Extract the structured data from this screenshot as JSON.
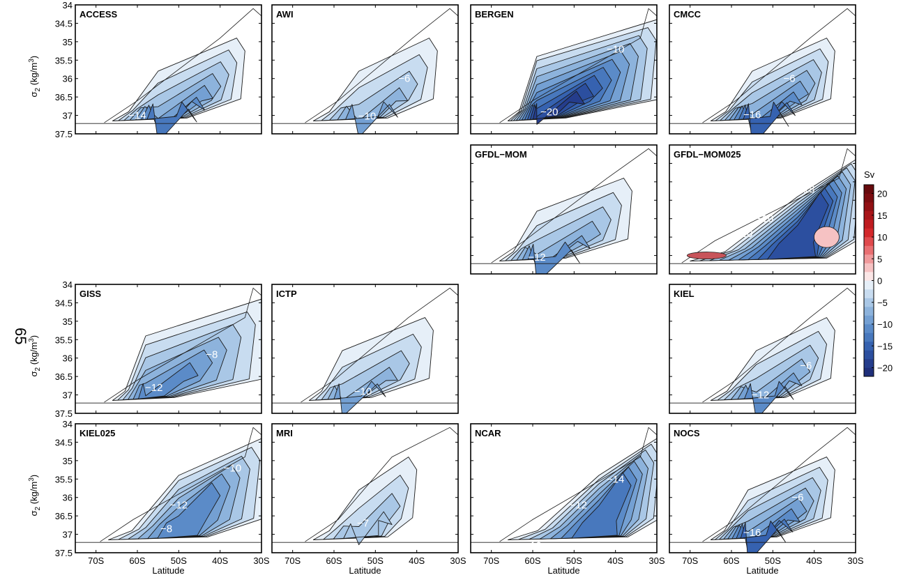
{
  "page_number": "65",
  "chart_data": {
    "type": "contour",
    "x": {
      "label": "Latitude",
      "ticks": [
        "70S",
        "60S",
        "50S",
        "40S",
        "30S"
      ],
      "tick_values": [
        -70,
        -60,
        -50,
        -40,
        -30
      ],
      "range": [
        -75,
        -30
      ]
    },
    "y": {
      "label": "σ",
      "label_sub": "2",
      "label_units_pre": " (kg/m",
      "label_units_sup": "3",
      "label_units_post": ")",
      "ticks": [
        "34",
        "34.5",
        "35",
        "35.5",
        "36",
        "36.5",
        "37",
        "37.5"
      ],
      "tick_values": [
        34,
        34.5,
        35,
        35.5,
        36,
        36.5,
        37,
        37.5
      ],
      "range": [
        34,
        37.5
      ],
      "inverted": true
    },
    "colorbar": {
      "units": "Sv",
      "ticks": [
        "20",
        "15",
        "10",
        "5",
        "0",
        "−5",
        "−10",
        "−15",
        "−20"
      ],
      "tick_values": [
        20,
        15,
        10,
        5,
        0,
        -5,
        -10,
        -15,
        -20
      ],
      "range": [
        -22,
        22
      ],
      "levels": [
        {
          "min": -22,
          "max": -20,
          "color": "#1f2f7a"
        },
        {
          "min": -20,
          "max": -18,
          "color": "#253d8c"
        },
        {
          "min": -18,
          "max": -16,
          "color": "#2c4f9f"
        },
        {
          "min": -16,
          "max": -14,
          "color": "#3662b0"
        },
        {
          "min": -14,
          "max": -12,
          "color": "#4878bd"
        },
        {
          "min": -12,
          "max": -10,
          "color": "#5b8bc8"
        },
        {
          "min": -10,
          "max": -8,
          "color": "#74a0d3"
        },
        {
          "min": -8,
          "max": -6,
          "color": "#8db3dc"
        },
        {
          "min": -6,
          "max": -4,
          "color": "#a9c7e6"
        },
        {
          "min": -4,
          "max": -2,
          "color": "#c8dcf0"
        },
        {
          "min": -2,
          "max": 0,
          "color": "#e6eff8"
        },
        {
          "min": 0,
          "max": 2,
          "color": "#fbe6e6"
        },
        {
          "min": 2,
          "max": 4,
          "color": "#f6c2c3"
        },
        {
          "min": 4,
          "max": 6,
          "color": "#f0999b"
        },
        {
          "min": 6,
          "max": 8,
          "color": "#e96f72"
        },
        {
          "min": 8,
          "max": 10,
          "color": "#e04a4d"
        },
        {
          "min": 10,
          "max": 12,
          "color": "#d3282b"
        },
        {
          "min": 12,
          "max": 14,
          "color": "#bf1c20"
        },
        {
          "min": 14,
          "max": 16,
          "color": "#a81519"
        },
        {
          "min": 16,
          "max": 18,
          "color": "#911014"
        },
        {
          "min": 18,
          "max": 20,
          "color": "#7b0c10"
        },
        {
          "min": 20,
          "max": 22,
          "color": "#670a0d"
        }
      ]
    },
    "panels": [
      {
        "name": "ACCESS",
        "row": 0,
        "col": 0,
        "min_sv": -14,
        "core": [
          -53,
          36.9
        ],
        "extent_lat": [
          -66,
          -36
        ],
        "labels": [
          {
            "text": "−14",
            "lat": -60,
            "sigma": 37.0
          }
        ]
      },
      {
        "name": "AWI",
        "row": 0,
        "col": 1,
        "min_sv": -10,
        "core": [
          -52,
          36.9
        ],
        "extent_lat": [
          -65,
          -37
        ],
        "labels": [
          {
            "text": "−10",
            "lat": -52,
            "sigma": 37.02
          },
          {
            "text": "−6",
            "lat": -43,
            "sigma": 36.0
          }
        ]
      },
      {
        "name": "BERGEN",
        "row": 0,
        "col": 2,
        "min_sv": -20,
        "core": [
          -57,
          36.8
        ],
        "extent_lat": [
          -66,
          -30
        ],
        "labels": [
          {
            "text": "−20",
            "lat": -56,
            "sigma": 36.9
          },
          {
            "text": "−10",
            "lat": -40,
            "sigma": 35.2
          }
        ]
      },
      {
        "name": "CMCC",
        "row": 0,
        "col": 3,
        "min_sv": -16,
        "core": [
          -53,
          37.0
        ],
        "extent_lat": [
          -65,
          -37
        ],
        "labels": [
          {
            "text": "−16",
            "lat": -55,
            "sigma": 36.98
          },
          {
            "text": "−6",
            "lat": -46,
            "sigma": 36.0
          }
        ]
      },
      {
        "name": "GFDL−MOM",
        "row": 1,
        "col": 2,
        "min_sv": -12,
        "core": [
          -57,
          37.0
        ],
        "extent_lat": [
          -68,
          -38
        ],
        "labels": [
          {
            "text": "−12",
            "lat": -59,
            "sigma": 37.05
          }
        ]
      },
      {
        "name": "GFDL−MOM025",
        "row": 1,
        "col": 3,
        "min_sv": -18,
        "core": [
          -42,
          35.5
        ],
        "extent_lat": [
          -70,
          -30
        ],
        "labels": [
          {
            "text": "−18",
            "lat": -42,
            "sigma": 35.2
          },
          {
            "text": "−10",
            "lat": -52,
            "sigma": 36.0
          },
          {
            "text": "−10",
            "lat": -57,
            "sigma": 36.4
          }
        ]
      },
      {
        "name": "GISS",
        "row": 2,
        "col": 0,
        "min_sv": -12,
        "core": [
          -56,
          36.7
        ],
        "extent_lat": [
          -66,
          -30
        ],
        "labels": [
          {
            "text": "−12",
            "lat": -56,
            "sigma": 36.8
          },
          {
            "text": "−8",
            "lat": -42,
            "sigma": 35.9
          }
        ]
      },
      {
        "name": "ICTP",
        "row": 2,
        "col": 1,
        "min_sv": -10,
        "core": [
          -56,
          36.9
        ],
        "extent_lat": [
          -66,
          -38
        ],
        "labels": [
          {
            "text": "−10",
            "lat": -53,
            "sigma": 36.9
          }
        ]
      },
      {
        "name": "KIEL",
        "row": 2,
        "col": 3,
        "min_sv": -12,
        "core": [
          -52,
          36.9
        ],
        "extent_lat": [
          -65,
          -37
        ],
        "labels": [
          {
            "text": "−12",
            "lat": -53,
            "sigma": 37.0
          },
          {
            "text": "−6",
            "lat": -42,
            "sigma": 36.2
          }
        ]
      },
      {
        "name": "KIEL025",
        "row": 3,
        "col": 0,
        "min_sv": -12,
        "core": [
          -48,
          36.0
        ],
        "extent_lat": [
          -67,
          -30
        ],
        "labels": [
          {
            "text": "−10",
            "lat": -37,
            "sigma": 35.2
          },
          {
            "text": "−12",
            "lat": -50,
            "sigma": 36.2
          },
          {
            "text": "−8",
            "lat": -53,
            "sigma": 36.85
          }
        ]
      },
      {
        "name": "MRI",
        "row": 3,
        "col": 1,
        "min_sv": -7,
        "core": [
          -52,
          36.6
        ],
        "extent_lat": [
          -65,
          -42
        ],
        "labels": [
          {
            "text": "−7",
            "lat": -53,
            "sigma": 36.7
          }
        ]
      },
      {
        "name": "NCAR",
        "row": 3,
        "col": 2,
        "min_sv": -14,
        "core": [
          -42,
          35.6
        ],
        "extent_lat": [
          -66,
          -30
        ],
        "labels": [
          {
            "text": "−14",
            "lat": -40,
            "sigma": 35.5
          },
          {
            "text": "−12",
            "lat": -49,
            "sigma": 36.2
          },
          {
            "text": "−10",
            "lat": -60,
            "sigma": 37.3
          }
        ]
      },
      {
        "name": "NOCS",
        "row": 3,
        "col": 3,
        "min_sv": -16,
        "core": [
          -54,
          36.9
        ],
        "extent_lat": [
          -65,
          -37
        ],
        "labels": [
          {
            "text": "−16",
            "lat": -55,
            "sigma": 36.95
          },
          {
            "text": "−6",
            "lat": -44,
            "sigma": 36.0
          }
        ]
      }
    ]
  }
}
